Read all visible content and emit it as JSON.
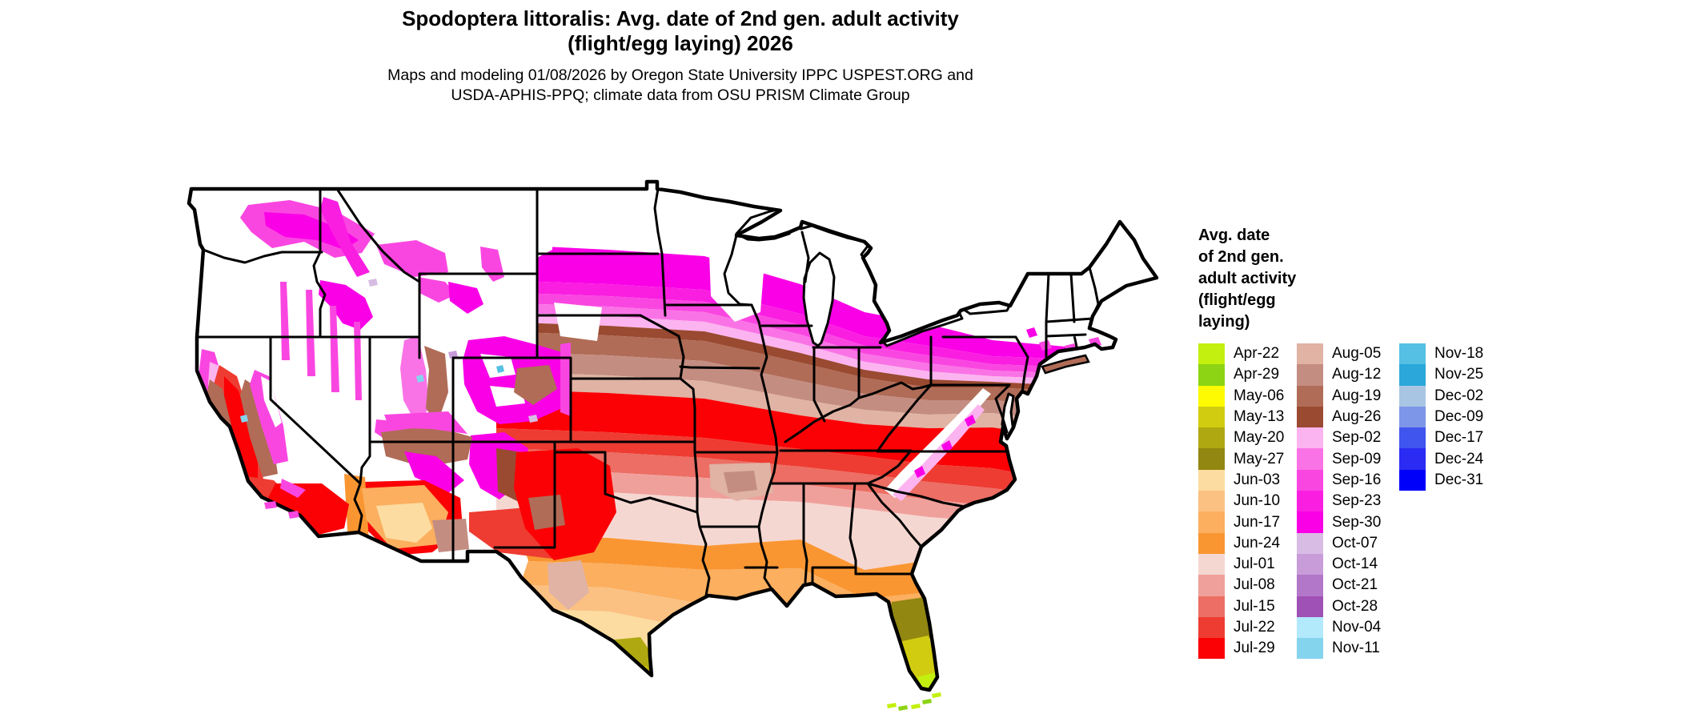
{
  "header": {
    "title_line1": "Spodoptera littoralis: Avg. date of 2nd gen. adult activity",
    "title_line2": "(flight/egg laying) 2026",
    "subtitle_line1": "Maps and modeling 01/08/2026 by Oregon State University IPPC USPEST.ORG and",
    "subtitle_line2": "USDA-APHIS-PPQ; climate data from OSU PRISM Climate Group"
  },
  "legend": {
    "title_lines": [
      "Avg. date",
      "of 2nd gen.",
      "adult activity",
      "(flight/egg",
      "laying)"
    ],
    "columns": [
      [
        {
          "label": "Apr-22",
          "color": "#c3f00f"
        },
        {
          "label": "Apr-29",
          "color": "#8cd414"
        },
        {
          "label": "May-06",
          "color": "#fdfa02"
        },
        {
          "label": "May-13",
          "color": "#d2cc11"
        },
        {
          "label": "May-20",
          "color": "#b0a811"
        },
        {
          "label": "May-27",
          "color": "#918711"
        },
        {
          "label": "Jun-03",
          "color": "#fcdca0"
        },
        {
          "label": "Jun-10",
          "color": "#fbc182"
        },
        {
          "label": "Jun-17",
          "color": "#fbaf5f"
        },
        {
          "label": "Jun-24",
          "color": "#fa9632"
        },
        {
          "label": "Jul-01",
          "color": "#f5d7d2"
        },
        {
          "label": "Jul-08",
          "color": "#f0a09b"
        },
        {
          "label": "Jul-15",
          "color": "#ec6e64"
        },
        {
          "label": "Jul-22",
          "color": "#ee3c32"
        },
        {
          "label": "Jul-29",
          "color": "#fb0005"
        }
      ],
      [
        {
          "label": "Aug-05",
          "color": "#e0b3a4"
        },
        {
          "label": "Aug-12",
          "color": "#c48d82"
        },
        {
          "label": "Aug-19",
          "color": "#b06c57"
        },
        {
          "label": "Aug-26",
          "color": "#9a4a31"
        },
        {
          "label": "Sep-02",
          "color": "#fcb4f0"
        },
        {
          "label": "Sep-09",
          "color": "#fa73e6"
        },
        {
          "label": "Sep-16",
          "color": "#fa46e1"
        },
        {
          "label": "Sep-23",
          "color": "#fa1ee1"
        },
        {
          "label": "Sep-30",
          "color": "#fa00e6"
        },
        {
          "label": "Oct-07",
          "color": "#d9bce4"
        },
        {
          "label": "Oct-14",
          "color": "#c79cd9"
        },
        {
          "label": "Oct-21",
          "color": "#b277c9"
        },
        {
          "label": "Oct-28",
          "color": "#a051b5"
        },
        {
          "label": "Nov-04",
          "color": "#b2e9fb"
        },
        {
          "label": "Nov-11",
          "color": "#85d4ee"
        }
      ],
      [
        {
          "label": "Nov-18",
          "color": "#55c0e4"
        },
        {
          "label": "Nov-25",
          "color": "#2ba8d9"
        },
        {
          "label": "Dec-02",
          "color": "#a8c6e4"
        },
        {
          "label": "Dec-09",
          "color": "#7d96e8"
        },
        {
          "label": "Dec-17",
          "color": "#3f55ee"
        },
        {
          "label": "Dec-24",
          "color": "#2b2bf3"
        },
        {
          "label": "Dec-31",
          "color": "#0000fa"
        }
      ]
    ]
  },
  "chart_data": {
    "type": "choropleth-map",
    "title": "Spodoptera littoralis: Avg. date of 2nd gen. adult activity (flight/egg laying) 2026",
    "map_area": "Contiguous United States with state borders",
    "generated": "01/08/2026",
    "source": "Oregon State University IPPC USPEST.ORG and USDA-APHIS-PPQ; climate data from OSU PRISM Climate Group",
    "legend_title": "Avg. date of 2nd gen. adult activity (flight/egg laying)",
    "classes": [
      {
        "label": "Apr-22",
        "color": "#c3f00f"
      },
      {
        "label": "Apr-29",
        "color": "#8cd414"
      },
      {
        "label": "May-06",
        "color": "#fdfa02"
      },
      {
        "label": "May-13",
        "color": "#d2cc11"
      },
      {
        "label": "May-20",
        "color": "#b0a811"
      },
      {
        "label": "May-27",
        "color": "#918711"
      },
      {
        "label": "Jun-03",
        "color": "#fcdca0"
      },
      {
        "label": "Jun-10",
        "color": "#fbc182"
      },
      {
        "label": "Jun-17",
        "color": "#fbaf5f"
      },
      {
        "label": "Jun-24",
        "color": "#fa9632"
      },
      {
        "label": "Jul-01",
        "color": "#f5d7d2"
      },
      {
        "label": "Jul-08",
        "color": "#f0a09b"
      },
      {
        "label": "Jul-15",
        "color": "#ec6e64"
      },
      {
        "label": "Jul-22",
        "color": "#ee3c32"
      },
      {
        "label": "Jul-29",
        "color": "#fb0005"
      },
      {
        "label": "Aug-05",
        "color": "#e0b3a4"
      },
      {
        "label": "Aug-12",
        "color": "#c48d82"
      },
      {
        "label": "Aug-19",
        "color": "#b06c57"
      },
      {
        "label": "Aug-26",
        "color": "#9a4a31"
      },
      {
        "label": "Sep-02",
        "color": "#fcb4f0"
      },
      {
        "label": "Sep-09",
        "color": "#fa73e6"
      },
      {
        "label": "Sep-16",
        "color": "#fa46e1"
      },
      {
        "label": "Sep-23",
        "color": "#fa1ee1"
      },
      {
        "label": "Sep-30",
        "color": "#fa00e6"
      },
      {
        "label": "Oct-07",
        "color": "#d9bce4"
      },
      {
        "label": "Oct-14",
        "color": "#c79cd9"
      },
      {
        "label": "Oct-21",
        "color": "#b277c9"
      },
      {
        "label": "Oct-28",
        "color": "#a051b5"
      },
      {
        "label": "Nov-04",
        "color": "#b2e9fb"
      },
      {
        "label": "Nov-11",
        "color": "#85d4ee"
      },
      {
        "label": "Nov-18",
        "color": "#55c0e4"
      },
      {
        "label": "Nov-25",
        "color": "#2ba8d9"
      },
      {
        "label": "Dec-02",
        "color": "#a8c6e4"
      },
      {
        "label": "Dec-09",
        "color": "#7d96e8"
      },
      {
        "label": "Dec-17",
        "color": "#3f55ee"
      },
      {
        "label": "Dec-24",
        "color": "#2b2bf3"
      },
      {
        "label": "Dec-31",
        "color": "#0000fa"
      }
    ],
    "regions": [
      {
        "area": "Northern tier (WA, OR, ID, MT, ND, N-MN, WI, N-MI, upstate NY, New England, high Rockies)",
        "value": "white / no 2nd gen. activity date"
      },
      {
        "area": "Dakotas, S-Minnesota, Iowa, N-Illinois, S-Michigan, N-Ohio, mountain West patches",
        "value": "Sep-16 to Sep-30 (magenta)"
      },
      {
        "area": "Nebraska, Kansas, Missouri, C-Illinois, Indiana, Kentucky-Ohio line, NJ/DE/MD coast",
        "value": "Aug-05 to Aug-26 (browns)"
      },
      {
        "area": "Oklahoma, N-Texas, Arkansas, Tennessee, N-Carolina, California Central Valley",
        "value": "Jul-22 to Jul-29 (red)"
      },
      {
        "area": "Central Texas, Mississippi, Alabama, Georgia, S-Carolina",
        "value": "Jul-01 to Jul-15 (pink/salmon)"
      },
      {
        "area": "Gulf Coast, S-Texas, SW Arizona deserts, N-Florida",
        "value": "Jun-03 to Jun-24 (orange/peach)"
      },
      {
        "area": "South Texas tip, Central/South Florida",
        "value": "May-06 to May-27 (olive/yellow)"
      },
      {
        "area": "Florida tip and Keys",
        "value": "Apr-22 to Apr-29 (yellow-green)"
      }
    ]
  }
}
